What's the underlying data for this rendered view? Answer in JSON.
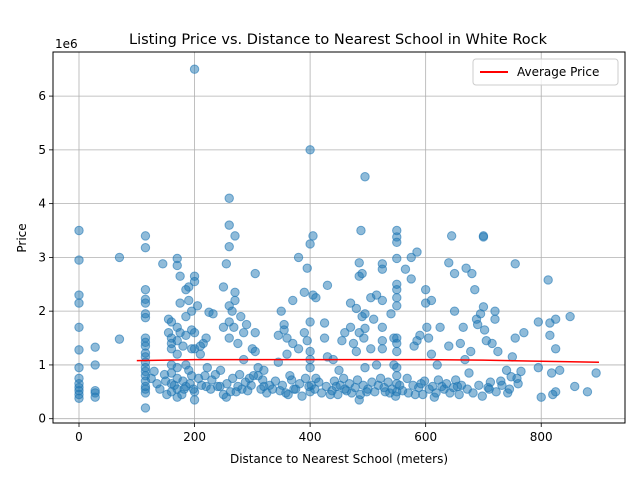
{
  "chart_data": {
    "type": "scatter",
    "title": "Listing Price vs. Distance to Nearest School in White Rock",
    "xlabel": "Distance to Nearest School (meters)",
    "ylabel": "Price",
    "y_offset_label": "1e6",
    "xlim": [
      -45,
      945
    ],
    "ylim": [
      -0.08,
      6.82
    ],
    "x_ticks": [
      0,
      200,
      400,
      600,
      800
    ],
    "y_ticks": [
      0,
      1,
      2,
      3,
      4,
      5,
      6
    ],
    "grid": true,
    "legend_position": "top-right",
    "colors": {
      "points": "#1f77b4",
      "trend": "#ff0000",
      "grid": "#b0b0b0"
    },
    "trend_line": {
      "name": "Average Price",
      "points": [
        [
          100,
          1.08
        ],
        [
          200,
          1.1
        ],
        [
          300,
          1.1
        ],
        [
          400,
          1.1
        ],
        [
          500,
          1.1
        ],
        [
          600,
          1.1
        ],
        [
          700,
          1.09
        ],
        [
          800,
          1.07
        ],
        [
          900,
          1.05
        ]
      ]
    },
    "points": [
      [
        0,
        3.5
      ],
      [
        0,
        2.95
      ],
      [
        0,
        2.3
      ],
      [
        0,
        2.15
      ],
      [
        0,
        1.7
      ],
      [
        0,
        1.28
      ],
      [
        0,
        0.95
      ],
      [
        0,
        0.75
      ],
      [
        0,
        0.65
      ],
      [
        0,
        0.58
      ],
      [
        0,
        0.52
      ],
      [
        0,
        0.45
      ],
      [
        0,
        0.38
      ],
      [
        28,
        1.33
      ],
      [
        28,
        1.0
      ],
      [
        28,
        0.52
      ],
      [
        28,
        0.48
      ],
      [
        28,
        0.4
      ],
      [
        70,
        3.0
      ],
      [
        70,
        1.48
      ],
      [
        115,
        3.4
      ],
      [
        115,
        3.18
      ],
      [
        115,
        2.4
      ],
      [
        115,
        2.22
      ],
      [
        115,
        2.15
      ],
      [
        115,
        1.95
      ],
      [
        115,
        1.88
      ],
      [
        115,
        1.5
      ],
      [
        115,
        1.42
      ],
      [
        115,
        1.35
      ],
      [
        115,
        1.22
      ],
      [
        115,
        1.15
      ],
      [
        115,
        1.05
      ],
      [
        115,
        0.95
      ],
      [
        115,
        0.88
      ],
      [
        115,
        0.8
      ],
      [
        115,
        0.7
      ],
      [
        115,
        0.6
      ],
      [
        115,
        0.55
      ],
      [
        115,
        0.48
      ],
      [
        115,
        0.2
      ],
      [
        130,
        0.88
      ],
      [
        145,
        2.88
      ],
      [
        148,
        0.82
      ],
      [
        155,
        1.85
      ],
      [
        155,
        1.6
      ],
      [
        160,
        1.8
      ],
      [
        160,
        1.5
      ],
      [
        160,
        1.4
      ],
      [
        160,
        1.3
      ],
      [
        160,
        1.0
      ],
      [
        160,
        0.85
      ],
      [
        160,
        0.65
      ],
      [
        160,
        0.5
      ],
      [
        170,
        2.98
      ],
      [
        170,
        2.85
      ],
      [
        170,
        1.7
      ],
      [
        170,
        1.45
      ],
      [
        170,
        1.2
      ],
      [
        170,
        0.95
      ],
      [
        170,
        0.75
      ],
      [
        170,
        0.55
      ],
      [
        170,
        0.4
      ],
      [
        175,
        2.65
      ],
      [
        175,
        2.15
      ],
      [
        175,
        1.6
      ],
      [
        180,
        1.35
      ],
      [
        180,
        0.7
      ],
      [
        185,
        2.4
      ],
      [
        185,
        1.9
      ],
      [
        185,
        1.55
      ],
      [
        185,
        1.0
      ],
      [
        185,
        0.6
      ],
      [
        190,
        2.45
      ],
      [
        190,
        2.2
      ],
      [
        190,
        0.9
      ],
      [
        195,
        2.0
      ],
      [
        195,
        1.65
      ],
      [
        195,
        1.3
      ],
      [
        195,
        0.8
      ],
      [
        200,
        6.5
      ],
      [
        200,
        2.65
      ],
      [
        200,
        2.55
      ],
      [
        200,
        1.6
      ],
      [
        200,
        1.3
      ],
      [
        200,
        0.5
      ],
      [
        200,
        0.35
      ],
      [
        205,
        2.1
      ],
      [
        210,
        1.35
      ],
      [
        210,
        1.2
      ],
      [
        215,
        1.4
      ],
      [
        220,
        1.5
      ],
      [
        220,
        0.6
      ],
      [
        225,
        1.98
      ],
      [
        228,
        0.55
      ],
      [
        232,
        1.95
      ],
      [
        240,
        0.6
      ],
      [
        245,
        0.9
      ],
      [
        250,
        1.7
      ],
      [
        250,
        2.45
      ],
      [
        255,
        2.88
      ],
      [
        255,
        0.4
      ],
      [
        260,
        4.1
      ],
      [
        260,
        3.6
      ],
      [
        260,
        3.2
      ],
      [
        260,
        2.1
      ],
      [
        260,
        1.8
      ],
      [
        260,
        1.5
      ],
      [
        262,
        0.5
      ],
      [
        265,
        2.0
      ],
      [
        268,
        1.7
      ],
      [
        270,
        3.4
      ],
      [
        270,
        2.35
      ],
      [
        270,
        2.2
      ],
      [
        275,
        1.4
      ],
      [
        275,
        0.6
      ],
      [
        280,
        1.9
      ],
      [
        285,
        1.6
      ],
      [
        285,
        1.1
      ],
      [
        290,
        1.75
      ],
      [
        295,
        0.75
      ],
      [
        300,
        1.3
      ],
      [
        305,
        2.7
      ],
      [
        305,
        1.6
      ],
      [
        305,
        1.25
      ],
      [
        310,
        0.95
      ],
      [
        310,
        0.8
      ],
      [
        315,
        0.55
      ],
      [
        320,
        0.9
      ],
      [
        320,
        0.6
      ],
      [
        345,
        1.55
      ],
      [
        345,
        1.05
      ],
      [
        350,
        2.0
      ],
      [
        355,
        1.65
      ],
      [
        355,
        1.75
      ],
      [
        360,
        1.5
      ],
      [
        360,
        1.2
      ],
      [
        362,
        0.45
      ],
      [
        365,
        0.8
      ],
      [
        370,
        2.2
      ],
      [
        370,
        1.4
      ],
      [
        372,
        0.55
      ],
      [
        380,
        3.0
      ],
      [
        380,
        1.3
      ],
      [
        390,
        2.35
      ],
      [
        390,
        1.6
      ],
      [
        395,
        2.8
      ],
      [
        395,
        1.45
      ],
      [
        398,
        0.6
      ],
      [
        400,
        5.0
      ],
      [
        400,
        3.25
      ],
      [
        400,
        1.8
      ],
      [
        400,
        1.25
      ],
      [
        400,
        1.1
      ],
      [
        400,
        0.95
      ],
      [
        400,
        0.5
      ],
      [
        405,
        3.4
      ],
      [
        405,
        2.3
      ],
      [
        410,
        2.25
      ],
      [
        410,
        0.75
      ],
      [
        425,
        1.78
      ],
      [
        425,
        1.5
      ],
      [
        430,
        2.48
      ],
      [
        430,
        1.15
      ],
      [
        435,
        0.45
      ],
      [
        440,
        1.1
      ],
      [
        445,
        0.6
      ],
      [
        450,
        0.9
      ],
      [
        455,
        1.45
      ],
      [
        460,
        0.55
      ],
      [
        460,
        1.6
      ],
      [
        470,
        2.15
      ],
      [
        470,
        1.7
      ],
      [
        475,
        1.4
      ],
      [
        480,
        2.05
      ],
      [
        480,
        1.25
      ],
      [
        485,
        2.9
      ],
      [
        485,
        2.65
      ],
      [
        485,
        1.6
      ],
      [
        485,
        0.35
      ],
      [
        488,
        3.5
      ],
      [
        490,
        2.7
      ],
      [
        490,
        1.9
      ],
      [
        493,
        1.5
      ],
      [
        495,
        4.5
      ],
      [
        495,
        1.95
      ],
      [
        495,
        1.68
      ],
      [
        495,
        0.95
      ],
      [
        498,
        0.5
      ],
      [
        505,
        2.25
      ],
      [
        505,
        1.3
      ],
      [
        510,
        1.85
      ],
      [
        515,
        2.3
      ],
      [
        515,
        1.0
      ],
      [
        525,
        2.88
      ],
      [
        525,
        2.78
      ],
      [
        525,
        2.2
      ],
      [
        525,
        1.7
      ],
      [
        525,
        1.45
      ],
      [
        525,
        1.3
      ],
      [
        530,
        0.5
      ],
      [
        540,
        1.95
      ],
      [
        545,
        1.5
      ],
      [
        545,
        1.0
      ],
      [
        550,
        3.5
      ],
      [
        550,
        3.38
      ],
      [
        550,
        3.28
      ],
      [
        550,
        2.98
      ],
      [
        550,
        2.5
      ],
      [
        550,
        2.4
      ],
      [
        550,
        2.25
      ],
      [
        550,
        2.1
      ],
      [
        550,
        1.5
      ],
      [
        550,
        1.4
      ],
      [
        550,
        1.25
      ],
      [
        550,
        0.95
      ],
      [
        550,
        0.8
      ],
      [
        550,
        0.65
      ],
      [
        550,
        0.5
      ],
      [
        565,
        2.78
      ],
      [
        568,
        0.75
      ],
      [
        575,
        3.0
      ],
      [
        575,
        2.6
      ],
      [
        580,
        1.35
      ],
      [
        585,
        3.1
      ],
      [
        585,
        1.45
      ],
      [
        590,
        1.55
      ],
      [
        595,
        0.45
      ],
      [
        598,
        0.7
      ],
      [
        600,
        2.4
      ],
      [
        600,
        2.15
      ],
      [
        602,
        1.7
      ],
      [
        605,
        1.5
      ],
      [
        610,
        2.2
      ],
      [
        610,
        1.2
      ],
      [
        615,
        0.4
      ],
      [
        620,
        1.0
      ],
      [
        625,
        1.7
      ],
      [
        628,
        0.6
      ],
      [
        640,
        2.9
      ],
      [
        640,
        1.35
      ],
      [
        645,
        3.4
      ],
      [
        650,
        2.7
      ],
      [
        650,
        2.0
      ],
      [
        655,
        0.6
      ],
      [
        660,
        1.4
      ],
      [
        665,
        1.7
      ],
      [
        668,
        1.1
      ],
      [
        670,
        2.8
      ],
      [
        675,
        0.85
      ],
      [
        678,
        1.25
      ],
      [
        680,
        2.7
      ],
      [
        685,
        2.4
      ],
      [
        688,
        1.85
      ],
      [
        690,
        1.75
      ],
      [
        695,
        1.95
      ],
      [
        700,
        3.4
      ],
      [
        700,
        3.38
      ],
      [
        700,
        2.08
      ],
      [
        702,
        1.65
      ],
      [
        705,
        1.45
      ],
      [
        710,
        0.55
      ],
      [
        715,
        1.4
      ],
      [
        720,
        2.0
      ],
      [
        720,
        1.85
      ],
      [
        725,
        1.25
      ],
      [
        730,
        0.7
      ],
      [
        740,
        0.9
      ],
      [
        745,
        0.55
      ],
      [
        750,
        1.15
      ],
      [
        755,
        2.88
      ],
      [
        755,
        1.5
      ],
      [
        758,
        0.75
      ],
      [
        765,
        0.88
      ],
      [
        770,
        1.6
      ],
      [
        795,
        1.8
      ],
      [
        795,
        0.95
      ],
      [
        800,
        0.4
      ],
      [
        812,
        2.58
      ],
      [
        815,
        1.78
      ],
      [
        815,
        1.55
      ],
      [
        818,
        0.85
      ],
      [
        820,
        0.45
      ],
      [
        825,
        1.85
      ],
      [
        825,
        1.3
      ],
      [
        825,
        0.5
      ],
      [
        832,
        0.9
      ],
      [
        850,
        1.9
      ],
      [
        858,
        0.6
      ],
      [
        880,
        0.5
      ],
      [
        895,
        0.85
      ],
      [
        125,
        0.75
      ],
      [
        135,
        0.65
      ],
      [
        140,
        0.55
      ],
      [
        150,
        0.7
      ],
      [
        152,
        0.45
      ],
      [
        165,
        0.62
      ],
      [
        178,
        0.45
      ],
      [
        182,
        0.55
      ],
      [
        192,
        0.65
      ],
      [
        198,
        0.55
      ],
      [
        207,
        0.75
      ],
      [
        212,
        0.62
      ],
      [
        218,
        0.8
      ],
      [
        222,
        0.95
      ],
      [
        230,
        0.72
      ],
      [
        236,
        0.82
      ],
      [
        244,
        0.6
      ],
      [
        250,
        0.45
      ],
      [
        256,
        0.65
      ],
      [
        266,
        0.75
      ],
      [
        272,
        0.5
      ],
      [
        278,
        0.82
      ],
      [
        282,
        0.55
      ],
      [
        288,
        0.68
      ],
      [
        292,
        0.52
      ],
      [
        298,
        0.62
      ],
      [
        302,
        0.8
      ],
      [
        318,
        0.72
      ],
      [
        325,
        0.48
      ],
      [
        330,
        0.62
      ],
      [
        335,
        0.55
      ],
      [
        340,
        0.7
      ],
      [
        348,
        0.52
      ],
      [
        352,
        0.62
      ],
      [
        358,
        0.48
      ],
      [
        368,
        0.72
      ],
      [
        375,
        0.55
      ],
      [
        382,
        0.65
      ],
      [
        386,
        0.42
      ],
      [
        392,
        0.75
      ],
      [
        402,
        0.62
      ],
      [
        408,
        0.55
      ],
      [
        415,
        0.68
      ],
      [
        420,
        0.48
      ],
      [
        428,
        0.6
      ],
      [
        438,
        0.52
      ],
      [
        442,
        0.7
      ],
      [
        448,
        0.45
      ],
      [
        452,
        0.62
      ],
      [
        458,
        0.75
      ],
      [
        463,
        0.52
      ],
      [
        468,
        0.65
      ],
      [
        472,
        0.48
      ],
      [
        478,
        0.58
      ],
      [
        482,
        0.72
      ],
      [
        487,
        0.45
      ],
      [
        492,
        0.62
      ],
      [
        500,
        0.55
      ],
      [
        507,
        0.68
      ],
      [
        512,
        0.5
      ],
      [
        518,
        0.62
      ],
      [
        522,
        0.75
      ],
      [
        528,
        0.58
      ],
      [
        535,
        0.68
      ],
      [
        538,
        0.48
      ],
      [
        542,
        0.55
      ],
      [
        548,
        0.42
      ],
      [
        555,
        0.62
      ],
      [
        560,
        0.52
      ],
      [
        570,
        0.48
      ],
      [
        578,
        0.62
      ],
      [
        582,
        0.45
      ],
      [
        588,
        0.58
      ],
      [
        592,
        0.65
      ],
      [
        606,
        0.55
      ],
      [
        612,
        0.6
      ],
      [
        618,
        0.48
      ],
      [
        622,
        0.72
      ],
      [
        632,
        0.55
      ],
      [
        636,
        0.65
      ],
      [
        642,
        0.48
      ],
      [
        648,
        0.58
      ],
      [
        652,
        0.72
      ],
      [
        658,
        0.45
      ],
      [
        662,
        0.62
      ],
      [
        672,
        0.55
      ],
      [
        682,
        0.48
      ],
      [
        692,
        0.62
      ],
      [
        698,
        0.42
      ],
      [
        708,
        0.58
      ],
      [
        712,
        0.68
      ],
      [
        722,
        0.5
      ],
      [
        732,
        0.62
      ],
      [
        742,
        0.48
      ],
      [
        748,
        0.78
      ],
      [
        760,
        0.65
      ]
    ]
  }
}
